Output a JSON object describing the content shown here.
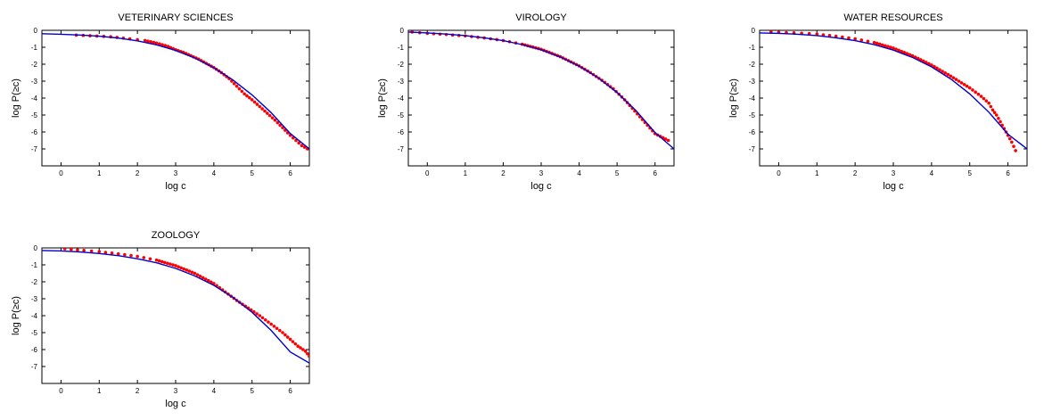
{
  "chart_data": [
    {
      "type": "scatter",
      "title": "VETERINARY SCIENCES",
      "xlabel": "log c",
      "ylabel": "log P(≥c)",
      "xlim": [
        -0.5,
        6.5
      ],
      "ylim": [
        -8,
        0
      ],
      "xticks": [
        "0",
        "1",
        "2",
        "3",
        "4",
        "5",
        "6"
      ],
      "yticks": [
        "0",
        "-1",
        "-2",
        "-3",
        "-4",
        "-5",
        "-6",
        "-7"
      ],
      "grid": false,
      "colors": {
        "points": "#ff0000",
        "fit": "#0000cc"
      },
      "series": [
        {
          "values": [
            [
              0.4,
              -0.28
            ],
            [
              1.3,
              -0.38
            ],
            [
              1.8,
              -0.5
            ],
            [
              2.2,
              -0.6
            ],
            [
              2.5,
              -0.75
            ],
            [
              2.8,
              -0.95
            ],
            [
              3.0,
              -1.15
            ],
            [
              3.2,
              -1.3
            ],
            [
              3.4,
              -1.5
            ],
            [
              3.6,
              -1.7
            ],
            [
              3.8,
              -1.95
            ],
            [
              4.0,
              -2.2
            ],
            [
              4.2,
              -2.5
            ],
            [
              4.4,
              -2.85
            ],
            [
              4.6,
              -3.3
            ],
            [
              4.8,
              -3.75
            ],
            [
              5.0,
              -4.1
            ],
            [
              5.2,
              -4.5
            ],
            [
              5.4,
              -4.9
            ],
            [
              5.6,
              -5.3
            ],
            [
              5.8,
              -5.75
            ],
            [
              6.0,
              -6.2
            ],
            [
              6.15,
              -6.5
            ],
            [
              6.3,
              -6.8
            ],
            [
              6.45,
              -7.0
            ]
          ]
        },
        {
          "values": [
            [
              -0.5,
              -0.2
            ],
            [
              0,
              -0.23
            ],
            [
              0.5,
              -0.28
            ],
            [
              1,
              -0.35
            ],
            [
              1.5,
              -0.46
            ],
            [
              2,
              -0.62
            ],
            [
              2.5,
              -0.86
            ],
            [
              3,
              -1.19
            ],
            [
              3.5,
              -1.63
            ],
            [
              4,
              -2.21
            ],
            [
              4.5,
              -2.93
            ],
            [
              5,
              -3.81
            ],
            [
              5.5,
              -4.86
            ],
            [
              6,
              -6.09
            ],
            [
              6.5,
              -7.0
            ]
          ]
        }
      ]
    },
    {
      "type": "scatter",
      "title": "VIROLOGY",
      "xlabel": "log c",
      "ylabel": "log P(≥c)",
      "xlim": [
        -0.5,
        6.5
      ],
      "ylim": [
        -8,
        0
      ],
      "xticks": [
        "0",
        "1",
        "2",
        "3",
        "4",
        "5",
        "6"
      ],
      "yticks": [
        "0",
        "-1",
        "-2",
        "-3",
        "-4",
        "-5",
        "-6",
        "-7"
      ],
      "grid": false,
      "colors": {
        "points": "#ff0000",
        "fit": "#0000cc"
      },
      "series": [
        {
          "values": [
            [
              -0.4,
              -0.1
            ],
            [
              0,
              -0.18
            ],
            [
              0.5,
              -0.25
            ],
            [
              1,
              -0.33
            ],
            [
              1.5,
              -0.45
            ],
            [
              2,
              -0.6
            ],
            [
              2.5,
              -0.82
            ],
            [
              3,
              -1.12
            ],
            [
              3.5,
              -1.55
            ],
            [
              4,
              -2.1
            ],
            [
              4.3,
              -2.5
            ],
            [
              4.6,
              -2.95
            ],
            [
              4.9,
              -3.45
            ],
            [
              5.2,
              -4.1
            ],
            [
              5.4,
              -4.6
            ],
            [
              5.6,
              -5.1
            ],
            [
              5.8,
              -5.6
            ],
            [
              6.0,
              -6.1
            ],
            [
              6.35,
              -6.5
            ]
          ]
        },
        {
          "values": [
            [
              -0.5,
              -0.1
            ],
            [
              0,
              -0.15
            ],
            [
              0.5,
              -0.22
            ],
            [
              1,
              -0.31
            ],
            [
              1.5,
              -0.44
            ],
            [
              2,
              -0.61
            ],
            [
              2.5,
              -0.84
            ],
            [
              3,
              -1.15
            ],
            [
              3.5,
              -1.57
            ],
            [
              4,
              -2.11
            ],
            [
              4.5,
              -2.8
            ],
            [
              5,
              -3.67
            ],
            [
              5.5,
              -4.74
            ],
            [
              6,
              -6.03
            ],
            [
              6.5,
              -7.0
            ]
          ]
        }
      ]
    },
    {
      "type": "scatter",
      "title": "WATER RESOURCES",
      "xlabel": "log c",
      "ylabel": "log P(≥c)",
      "xlim": [
        -0.5,
        6.5
      ],
      "ylim": [
        -8,
        0
      ],
      "xticks": [
        "0",
        "1",
        "2",
        "3",
        "4",
        "5",
        "6"
      ],
      "yticks": [
        "0",
        "-1",
        "-2",
        "-3",
        "-4",
        "-5",
        "-6",
        "-7"
      ],
      "grid": false,
      "colors": {
        "points": "#ff0000",
        "fit": "#0000cc"
      },
      "series": [
        {
          "values": [
            [
              -0.2,
              -0.1
            ],
            [
              0.4,
              -0.15
            ],
            [
              1,
              -0.22
            ],
            [
              1.5,
              -0.35
            ],
            [
              2,
              -0.5
            ],
            [
              2.5,
              -0.72
            ],
            [
              3,
              -1.05
            ],
            [
              3.5,
              -1.5
            ],
            [
              4,
              -2.05
            ],
            [
              4.5,
              -2.7
            ],
            [
              5,
              -3.4
            ],
            [
              5.3,
              -3.9
            ],
            [
              5.5,
              -4.3
            ],
            [
              5.6,
              -4.7
            ],
            [
              5.7,
              -5.0
            ],
            [
              5.8,
              -5.4
            ],
            [
              5.9,
              -5.8
            ],
            [
              6.0,
              -6.2
            ],
            [
              6.1,
              -6.6
            ],
            [
              6.2,
              -7.1
            ]
          ]
        },
        {
          "values": [
            [
              -0.5,
              -0.15
            ],
            [
              0,
              -0.18
            ],
            [
              0.5,
              -0.23
            ],
            [
              1,
              -0.31
            ],
            [
              1.5,
              -0.44
            ],
            [
              2,
              -0.61
            ],
            [
              2.5,
              -0.85
            ],
            [
              3,
              -1.17
            ],
            [
              3.5,
              -1.6
            ],
            [
              4,
              -2.16
            ],
            [
              4.5,
              -2.87
            ],
            [
              5,
              -3.75
            ],
            [
              5.5,
              -4.83
            ],
            [
              6,
              -6.13
            ],
            [
              6.5,
              -7.0
            ]
          ]
        }
      ]
    },
    {
      "type": "scatter",
      "title": "ZOOLOGY",
      "xlabel": "log c",
      "ylabel": "log P(≥c)",
      "xlim": [
        -0.5,
        6.5
      ],
      "ylim": [
        -8,
        0
      ],
      "xticks": [
        "0",
        "1",
        "2",
        "3",
        "4",
        "5",
        "6"
      ],
      "yticks": [
        "0",
        "-1",
        "-2",
        "-3",
        "-4",
        "-5",
        "-6",
        "-7"
      ],
      "grid": false,
      "colors": {
        "points": "#ff0000",
        "fit": "#0000cc"
      },
      "series": [
        {
          "values": [
            [
              0.1,
              -0.05
            ],
            [
              0.6,
              -0.15
            ],
            [
              1,
              -0.22
            ],
            [
              1.5,
              -0.35
            ],
            [
              2,
              -0.5
            ],
            [
              2.5,
              -0.72
            ],
            [
              3,
              -1.05
            ],
            [
              3.5,
              -1.5
            ],
            [
              4,
              -2.1
            ],
            [
              4.3,
              -2.6
            ],
            [
              4.6,
              -3.1
            ],
            [
              4.9,
              -3.55
            ],
            [
              5.2,
              -4.0
            ],
            [
              5.5,
              -4.5
            ],
            [
              5.8,
              -5.0
            ],
            [
              6.0,
              -5.4
            ],
            [
              6.2,
              -5.8
            ],
            [
              6.4,
              -6.1
            ],
            [
              6.5,
              -6.4
            ]
          ]
        },
        {
          "values": [
            [
              -0.5,
              -0.15
            ],
            [
              0,
              -0.18
            ],
            [
              0.5,
              -0.24
            ],
            [
              1,
              -0.33
            ],
            [
              1.5,
              -0.46
            ],
            [
              2,
              -0.64
            ],
            [
              2.5,
              -0.88
            ],
            [
              3,
              -1.21
            ],
            [
              3.5,
              -1.65
            ],
            [
              4,
              -2.21
            ],
            [
              4.5,
              -2.92
            ],
            [
              5,
              -3.8
            ],
            [
              5.5,
              -4.87
            ],
            [
              6,
              -6.14
            ],
            [
              6.5,
              -6.8
            ]
          ]
        }
      ]
    }
  ]
}
